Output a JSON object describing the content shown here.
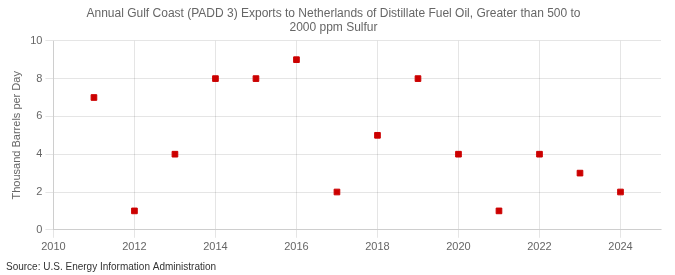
{
  "chart_data": {
    "type": "scatter",
    "title": "Annual Gulf Coast (PADD 3) Exports to Netherlands of Distillate Fuel Oil, Greater than 500 to\n2000 ppm Sulfur",
    "y_label": "Thousand Barrels per Day",
    "annotation": "Source: U.S. Energy Information Administration",
    "x": [
      2011,
      2012,
      2013,
      2014,
      2015,
      2016,
      2017,
      2018,
      2019,
      2020,
      2021,
      2022,
      2023,
      2024
    ],
    "values": [
      7,
      1,
      4,
      8,
      8,
      9,
      2,
      5,
      8,
      4,
      1,
      4,
      3,
      2
    ],
    "color": "#cc0000",
    "marker": "square",
    "xlim": [
      2010,
      2025
    ],
    "xticks": [
      2010,
      2012,
      2014,
      2016,
      2018,
      2020,
      2022,
      2024
    ],
    "ylim": [
      0,
      10
    ],
    "yticks": [
      0,
      2,
      4,
      6,
      8,
      10
    ],
    "grid": true
  }
}
